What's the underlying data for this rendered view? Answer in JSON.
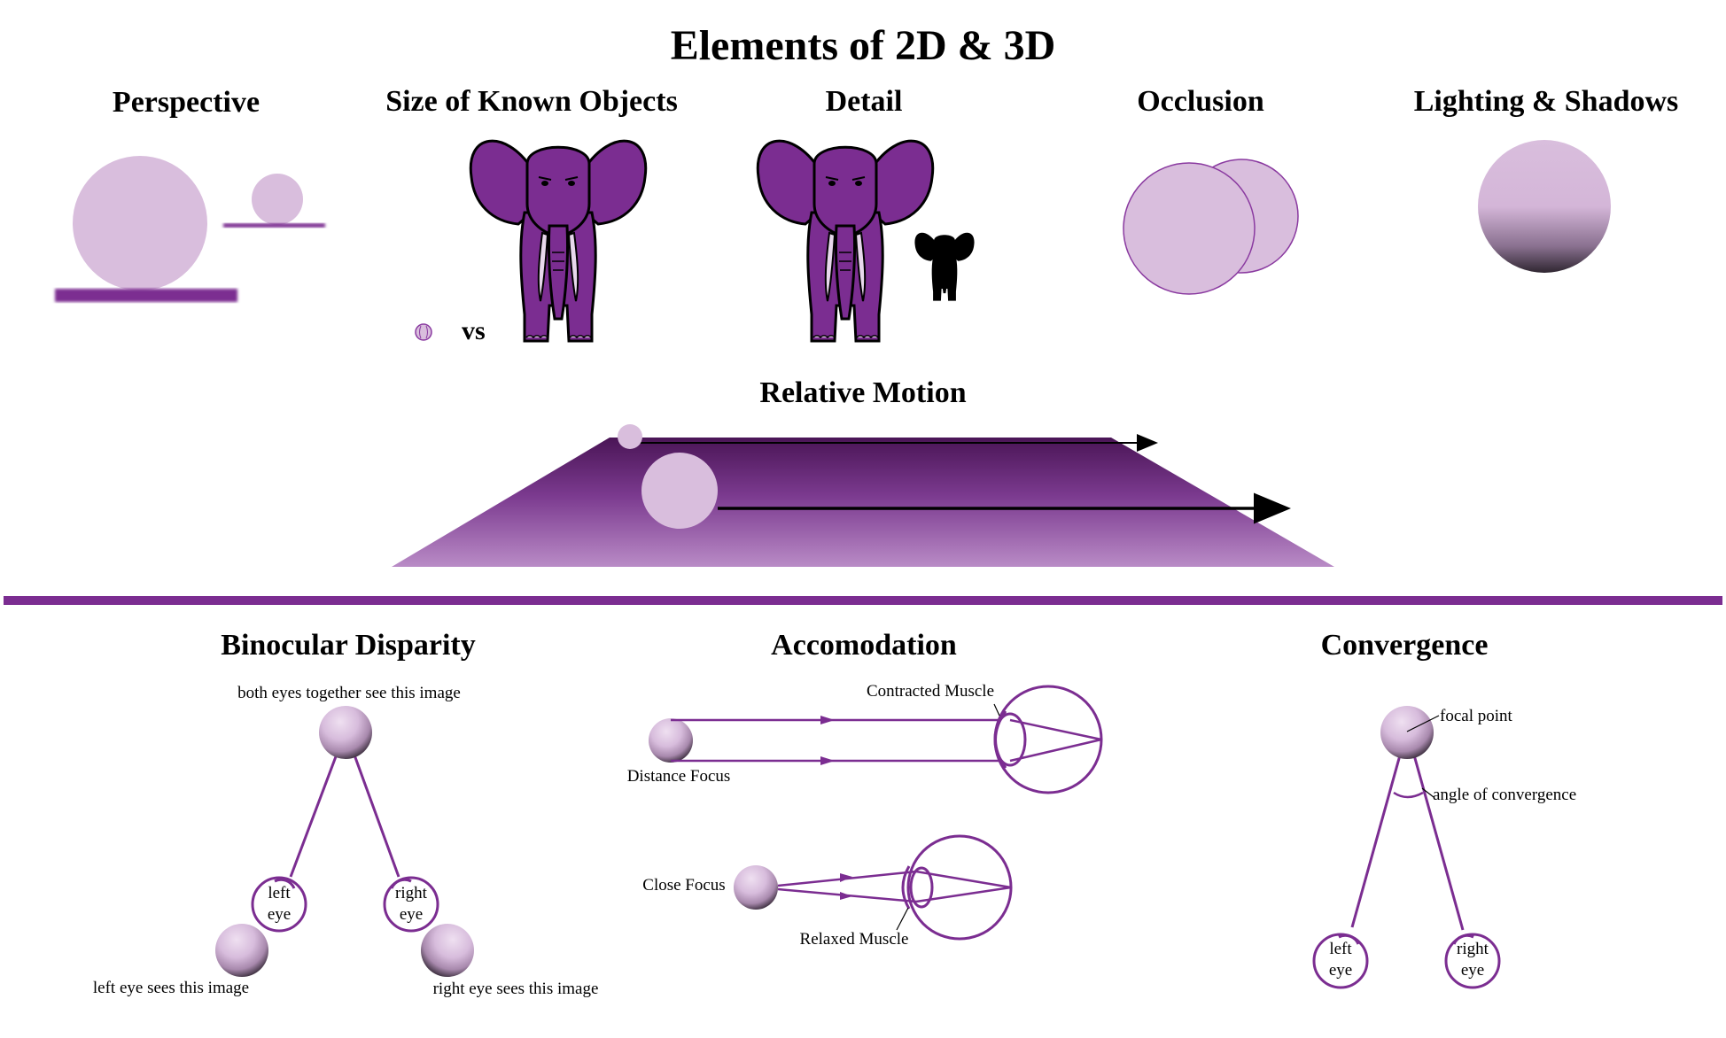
{
  "title": "Elements of 2D & 3D",
  "colors": {
    "purple": "#7b2d91",
    "dark_purple": "#4e1a5c",
    "light_purple": "#d9bedd",
    "outline_purple": "#8a3aa0"
  },
  "sections": {
    "perspective": "Perspective",
    "size_known": "Size of Known Objects",
    "detail": "Detail",
    "occlusion": "Occlusion",
    "lighting": "Lighting & Shadows",
    "relative_motion": "Relative Motion",
    "binocular": "Binocular Disparity",
    "accommodation": "Accomodation",
    "convergence": "Convergence"
  },
  "size_known": {
    "vs_label": "vs"
  },
  "binocular": {
    "top_caption": "both eyes together see this image",
    "left_eye": [
      "left",
      "eye"
    ],
    "right_eye": [
      "right",
      "eye"
    ],
    "left_caption": "left eye sees this image",
    "right_caption": "right eye sees this image"
  },
  "accommodation": {
    "contracted": "Contracted Muscle",
    "distance": "Distance Focus",
    "close": "Close Focus",
    "relaxed": "Relaxed Muscle"
  },
  "convergence": {
    "focal": "focal point",
    "angle": "angle of convergence",
    "left_eye": [
      "left",
      "eye"
    ],
    "right_eye": [
      "right",
      "eye"
    ]
  }
}
